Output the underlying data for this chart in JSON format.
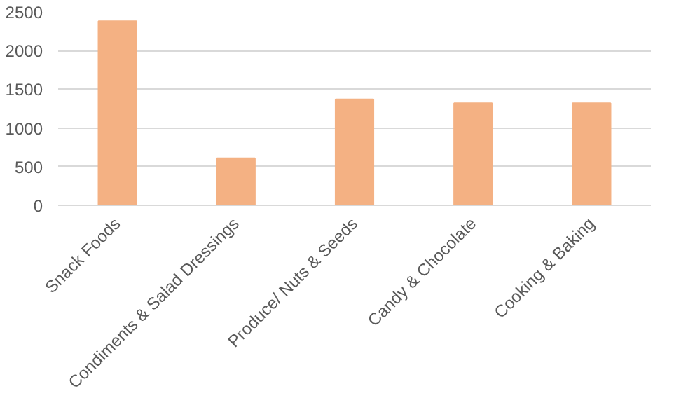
{
  "chart_data": {
    "type": "bar",
    "categories": [
      "Snack Foods",
      "Condiments & Salad Dressings",
      "Produce/ Nuts & Seeds",
      "Candy & Chocolate",
      "Cooking & Baking"
    ],
    "values": [
      2380,
      610,
      1370,
      1320,
      1320
    ],
    "color": "#f4b183",
    "ylim": [
      0,
      2500
    ],
    "yticks": [
      0,
      500,
      1000,
      1500,
      2000,
      2500
    ],
    "grid": "y"
  }
}
